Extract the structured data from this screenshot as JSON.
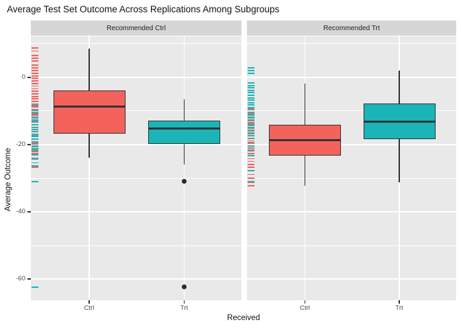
{
  "title": "Average Test Set Outcome Across Replications Among Subgroups",
  "chart_data": {
    "type": "boxplot",
    "title": "Average Test Set Outcome Across Replications Among Subgroups",
    "xlabel": "Received",
    "ylabel": "Average Outcome",
    "legend": "none",
    "grid": "on",
    "y_axis": {
      "ylim": [
        -66.3,
        12.2
      ],
      "major_breaks": [
        0,
        -20,
        -40,
        -60
      ],
      "minor_breaks": [
        10,
        -10,
        -30,
        -50
      ],
      "tick_labels": [
        "0",
        "-20",
        "-40",
        "-60"
      ]
    },
    "categories": [
      "Ctrl",
      "Trt"
    ],
    "palette": {
      "Ctrl": "#F4625C",
      "Trt": "#1BB5B8"
    },
    "facets": [
      {
        "label": "Recommended Ctrl",
        "boxes": [
          {
            "category": "Ctrl",
            "group": "Ctrl",
            "whisker_low": -23.8,
            "q1": -16.7,
            "median": -8.7,
            "q3": -3.9,
            "whisker_high": 8.5,
            "outliers": []
          },
          {
            "category": "Trt",
            "group": "Trt",
            "whisker_low": -26.0,
            "q1": -19.9,
            "median": -15.2,
            "q3": -12.8,
            "whisker_high": -6.5,
            "outliers": [
              -31.0,
              -62.3
            ]
          }
        ],
        "rug": {
          "Ctrl": [
            8.7,
            7.8,
            6.5,
            5.6,
            4.8,
            3.6,
            2.8,
            2.0,
            1.2,
            0.4,
            -0.3,
            -1.1,
            -1.9,
            -2.6,
            -3.4,
            -4.1,
            -4.9,
            -5.7,
            -6.4,
            -7.2,
            -8.0,
            -8.8,
            -9.6,
            -10.4,
            -11.2,
            -12.1,
            -13.0,
            -14.0,
            -15.0,
            -16.1,
            -17.2,
            -18.3,
            -19.4,
            -20.5,
            -21.6,
            -22.7,
            -24.0,
            -26.8
          ],
          "Trt": [
            -8.4,
            -9.9,
            -10.9,
            -11.8,
            -12.6,
            -13.3,
            -14.1,
            -14.8,
            -15.5,
            -16.2,
            -16.9,
            -17.6,
            -18.4,
            -19.1,
            -19.8,
            -20.6,
            -21.3,
            -22.1,
            -23.1,
            -24.3,
            -25.4,
            -26.3,
            -31.0,
            -62.4
          ]
        }
      },
      {
        "label": "Recommended Trt",
        "boxes": [
          {
            "category": "Ctrl",
            "group": "Ctrl",
            "whisker_low": -32.3,
            "q1": -23.2,
            "median": -18.7,
            "q3": -14.2,
            "whisker_high": -1.8,
            "outliers": []
          },
          {
            "category": "Trt",
            "group": "Trt",
            "whisker_low": -31.3,
            "q1": -18.3,
            "median": -13.2,
            "q3": -7.7,
            "whisker_high": 2.0,
            "outliers": []
          }
        ],
        "rug": {
          "Ctrl": [
            -9.4,
            -10.8,
            -12.0,
            -12.9,
            -13.7,
            -14.4,
            -15.2,
            -15.9,
            -16.7,
            -17.4,
            -18.1,
            -18.9,
            -19.6,
            -20.4,
            -21.1,
            -21.9,
            -22.6,
            -23.4,
            -24.2,
            -25.0,
            -25.9,
            -26.8,
            -27.8,
            -28.9,
            -30.0,
            -31.2,
            -32.3
          ],
          "Trt": [
            2.9,
            2.0,
            1.2,
            -1.7,
            -2.4,
            -3.1,
            -3.9,
            -4.6,
            -5.3,
            -6.1,
            -6.8,
            -7.5,
            -8.2,
            -9.0,
            -9.7,
            -10.4,
            -11.2,
            -11.9,
            -12.6,
            -13.4,
            -14.1,
            -14.9,
            -15.7,
            -16.5,
            -17.4,
            -18.3,
            -19.3,
            -20.4,
            -21.7,
            -23.3,
            -27.8,
            -31.0
          ]
        }
      }
    ],
    "x_tick_labels": [
      "Ctrl",
      "Trt"
    ]
  },
  "colors": {
    "box_ctrl_fill": "#F4625C",
    "box_trt_fill": "#1BB5B8",
    "box_border": "#333333",
    "panel_bg": "#E9E9E9",
    "strip_bg": "#D6D6D6",
    "gridline": "#FFFFFF",
    "axis_text": "#4D4D4D",
    "tick_mark": "#333333",
    "outlier": "#2B2B2B",
    "background": "#FFFFFF",
    "title_text": "#111111"
  }
}
